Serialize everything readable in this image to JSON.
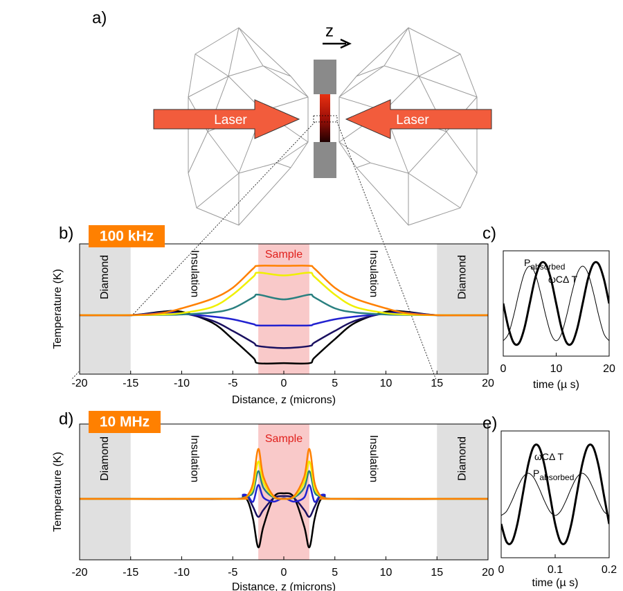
{
  "panel_a": {
    "label": "a)",
    "axis_label": "z",
    "laser_left": "Laser",
    "laser_right": "Laser"
  },
  "chart_data": [
    {
      "type": "line",
      "panel_label": "b)",
      "badge": "100 kHz",
      "xlabel": "Distance, z (microns)",
      "ylabel": "Temperature (K)",
      "xlim": [
        -20,
        20
      ],
      "ylim": [
        -4.3,
        5.2
      ],
      "xticks": [
        -20,
        -15,
        -10,
        -5,
        0,
        5,
        10,
        15,
        20
      ],
      "regions": [
        {
          "label": "Diamond",
          "x": [
            -20,
            -15
          ],
          "color": "#e0e0e0"
        },
        {
          "label": "Insulation",
          "x": [
            -15,
            -2.5
          ]
        },
        {
          "label": "Sample",
          "x": [
            -2.5,
            2.5
          ],
          "color": "#f9c9c9"
        },
        {
          "label": "Insulation",
          "x": [
            2.5,
            15
          ]
        },
        {
          "label": "Diamond",
          "x": [
            15,
            20
          ],
          "color": "#e0e0e0"
        }
      ],
      "x": [
        -20,
        -15,
        -12,
        -10,
        -7,
        -5,
        -3,
        -2.5,
        0,
        2.5,
        3,
        5,
        7,
        10,
        12,
        15,
        20
      ],
      "series": [
        {
          "color": "#000000",
          "values": [
            0,
            0,
            0.25,
            0.25,
            -0.55,
            -1.75,
            -3.1,
            -3.5,
            -3.5,
            -3.5,
            -3.1,
            -1.75,
            -0.55,
            0.25,
            0.25,
            0,
            0
          ]
        },
        {
          "color": "#1a1060",
          "values": [
            0,
            0,
            0.2,
            0.15,
            -0.4,
            -1.15,
            -2.0,
            -2.25,
            -2.4,
            -2.25,
            -2.0,
            -1.15,
            -0.4,
            0.15,
            0.2,
            0,
            0
          ]
        },
        {
          "color": "#2222d0",
          "values": [
            0,
            0,
            0.15,
            0.1,
            -0.1,
            -0.3,
            -0.65,
            -0.75,
            -0.75,
            -0.75,
            -0.65,
            -0.3,
            -0.1,
            0.1,
            0.15,
            0,
            0
          ]
        },
        {
          "color": "#2a8080",
          "values": [
            0,
            0,
            0.02,
            0.05,
            0.2,
            0.5,
            1.3,
            1.5,
            1.15,
            1.5,
            1.3,
            0.5,
            0.2,
            0.05,
            0.02,
            0,
            0
          ]
        },
        {
          "color": "#f0f000",
          "values": [
            0,
            0,
            0.05,
            0.15,
            0.6,
            1.5,
            2.8,
            3.1,
            2.9,
            3.1,
            2.8,
            1.5,
            0.6,
            0.15,
            0.05,
            0,
            0
          ]
        },
        {
          "color": "#ff8000",
          "values": [
            0,
            0,
            0.15,
            0.5,
            1.2,
            2.0,
            3.4,
            3.6,
            3.6,
            3.6,
            3.4,
            2.0,
            1.2,
            0.5,
            0.15,
            0,
            0
          ]
        }
      ]
    },
    {
      "type": "line",
      "panel_label": "c)",
      "xlabel": "time (µ s)",
      "xlim": [
        0,
        20
      ],
      "ylim": [
        -1.2,
        1.2
      ],
      "xticks": [
        0,
        10,
        20
      ],
      "x": [
        0,
        1,
        2,
        3,
        4,
        5,
        6,
        7,
        8,
        9,
        10,
        11,
        12,
        13,
        14,
        15,
        16,
        17,
        18,
        19,
        20
      ],
      "series": [
        {
          "name": "P",
          "name_subscript": "absorbed",
          "color": "#000000",
          "width": 1,
          "values": [
            -0.85,
            -0.69,
            -0.26,
            0.26,
            0.69,
            0.85,
            0.69,
            0.26,
            -0.26,
            -0.69,
            -0.85,
            -0.69,
            -0.26,
            0.26,
            0.69,
            0.85,
            0.69,
            0.26,
            -0.26,
            -0.69,
            -0.85
          ]
        },
        {
          "name": "ωCΔ T",
          "color": "#000000",
          "width": 3,
          "values": [
            0,
            -0.56,
            -0.9,
            -0.9,
            -0.56,
            0,
            0.56,
            0.9,
            0.9,
            0.56,
            0,
            -0.56,
            -0.9,
            -0.9,
            -0.56,
            0,
            0.56,
            0.9,
            0.9,
            0.56,
            0
          ]
        }
      ]
    },
    {
      "type": "line",
      "panel_label": "d)",
      "badge": "10 MHz",
      "xlabel": "Distance, z (microns)",
      "ylabel": "Temperature (K)",
      "xlim": [
        -20,
        20
      ],
      "ylim": [
        -4.4,
        5.4
      ],
      "xticks": [
        -20,
        -15,
        -10,
        -5,
        0,
        5,
        10,
        15,
        20
      ],
      "regions": [
        {
          "label": "Diamond",
          "x": [
            -20,
            -15
          ],
          "color": "#e0e0e0"
        },
        {
          "label": "Insulation",
          "x": [
            -15,
            -2.5
          ]
        },
        {
          "label": "Sample",
          "x": [
            -2.5,
            2.5
          ],
          "color": "#f9c9c9"
        },
        {
          "label": "Insulation",
          "x": [
            2.5,
            15
          ]
        },
        {
          "label": "Diamond",
          "x": [
            15,
            20
          ],
          "color": "#e0e0e0"
        }
      ],
      "x": [
        -20,
        -5,
        -4,
        -3.5,
        -3,
        -2.5,
        -2,
        -1,
        0,
        1,
        2,
        2.5,
        3,
        3.5,
        4,
        5,
        20
      ],
      "series": [
        {
          "color": "#000000",
          "values": [
            0,
            0,
            0.1,
            -0.2,
            -1.5,
            -3.5,
            -2.0,
            0.1,
            0.4,
            0.1,
            -2.0,
            -3.5,
            -1.5,
            -0.2,
            0.1,
            0,
            0
          ]
        },
        {
          "color": "#1a1060",
          "values": [
            0,
            0,
            0.2,
            0.1,
            -0.6,
            -1.3,
            -0.8,
            0.05,
            0.2,
            0.05,
            -0.8,
            -1.3,
            -0.6,
            0.1,
            0.2,
            0,
            0
          ]
        },
        {
          "color": "#2222d0",
          "values": [
            0,
            0,
            0.3,
            0.2,
            -0.2,
            1.0,
            0.1,
            -0.2,
            0.05,
            -0.2,
            0.1,
            1.0,
            -0.2,
            0.2,
            0.3,
            0,
            0
          ]
        },
        {
          "color": "#2a8080",
          "values": [
            0,
            0,
            0.1,
            0.2,
            0.5,
            2.0,
            0.8,
            0.1,
            0,
            0.1,
            0.8,
            2.0,
            0.5,
            0.2,
            0.1,
            0,
            0
          ]
        },
        {
          "color": "#f0f000",
          "values": [
            0,
            0,
            0.05,
            0.25,
            0.8,
            2.7,
            1.2,
            0.15,
            0,
            0.15,
            1.2,
            2.7,
            0.8,
            0.25,
            0.05,
            0,
            0
          ]
        },
        {
          "color": "#ff8000",
          "values": [
            0,
            0,
            0.05,
            0.3,
            1.2,
            3.6,
            1.6,
            0.2,
            0,
            0.2,
            1.6,
            3.6,
            1.2,
            0.3,
            0.05,
            0,
            0
          ]
        }
      ]
    },
    {
      "type": "line",
      "panel_label": "e)",
      "xlabel": "time (µ s)",
      "xlim": [
        0,
        0.2
      ],
      "ylim": [
        -1.2,
        1.2
      ],
      "xticks": [
        0,
        0.1,
        0.2
      ],
      "x": [
        0,
        0.01,
        0.02,
        0.03,
        0.04,
        0.05,
        0.06,
        0.07,
        0.08,
        0.09,
        0.1,
        0.11,
        0.12,
        0.13,
        0.14,
        0.15,
        0.16,
        0.17,
        0.18,
        0.19,
        0.2
      ],
      "series": [
        {
          "name": "ωCΔ T",
          "color": "#000000",
          "width": 3,
          "values": [
            -0.56,
            -0.9,
            -0.9,
            -0.56,
            0,
            0.56,
            0.9,
            0.9,
            0.56,
            0,
            -0.56,
            -0.9,
            -0.9,
            -0.56,
            0,
            0.56,
            0.9,
            0.9,
            0.56,
            0,
            -0.56
          ]
        },
        {
          "name": "P",
          "name_subscript": "absorbed",
          "color": "#000000",
          "width": 1,
          "values": [
            -0.4,
            -0.32,
            -0.12,
            0.12,
            0.32,
            0.4,
            0.32,
            0.12,
            -0.12,
            -0.32,
            -0.4,
            -0.32,
            -0.12,
            0.12,
            0.32,
            0.4,
            0.32,
            0.12,
            -0.12,
            -0.32,
            -0.4
          ]
        }
      ]
    }
  ]
}
